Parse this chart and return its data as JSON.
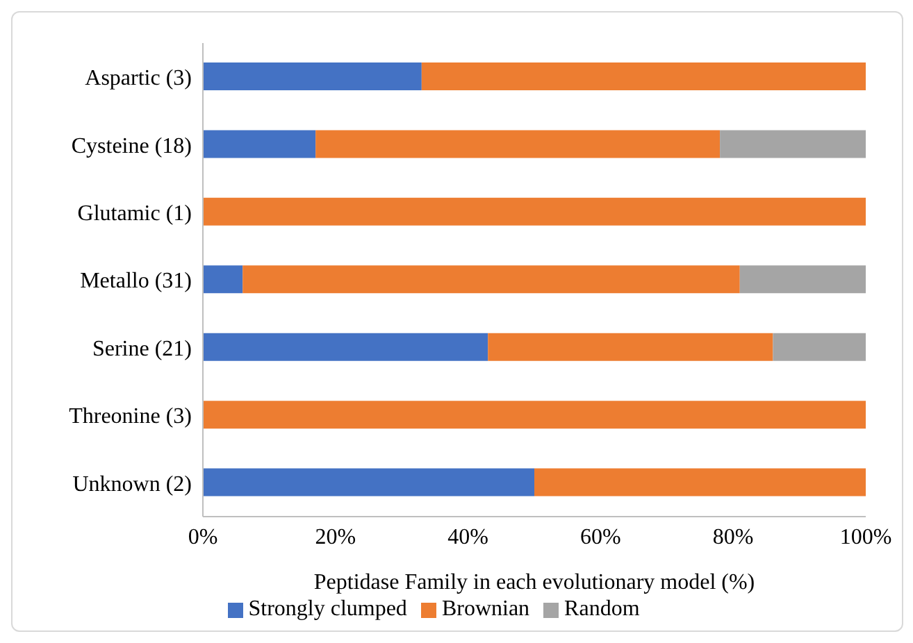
{
  "chart_data": {
    "type": "bar",
    "orientation": "horizontal",
    "stacked": true,
    "categories": [
      "Aspartic (3)",
      "Cysteine (18)",
      "Glutamic (1)",
      "Metallo (31)",
      "Serine (21)",
      "Threonine (3)",
      "Unknown (2)"
    ],
    "series": [
      {
        "name": "Strongly clumped",
        "color": "#4472c4",
        "values": [
          33,
          17,
          0,
          6,
          43,
          0,
          50
        ]
      },
      {
        "name": "Brownian",
        "color": "#ed7d31",
        "values": [
          67,
          61,
          100,
          75,
          43,
          100,
          50
        ]
      },
      {
        "name": "Random",
        "color": "#a5a5a5",
        "values": [
          0,
          22,
          0,
          19,
          14,
          0,
          0
        ]
      }
    ],
    "xlabel": "Peptidase Family in each evolutionary model (%)",
    "xlim": [
      0,
      100
    ],
    "xticks": [
      {
        "value": 0,
        "label": "0%"
      },
      {
        "value": 20,
        "label": "20%"
      },
      {
        "value": 40,
        "label": "40%"
      },
      {
        "value": 60,
        "label": "60%"
      },
      {
        "value": 80,
        "label": "80%"
      },
      {
        "value": 100,
        "label": "100%"
      }
    ],
    "grid": false,
    "legend": "bottom"
  }
}
